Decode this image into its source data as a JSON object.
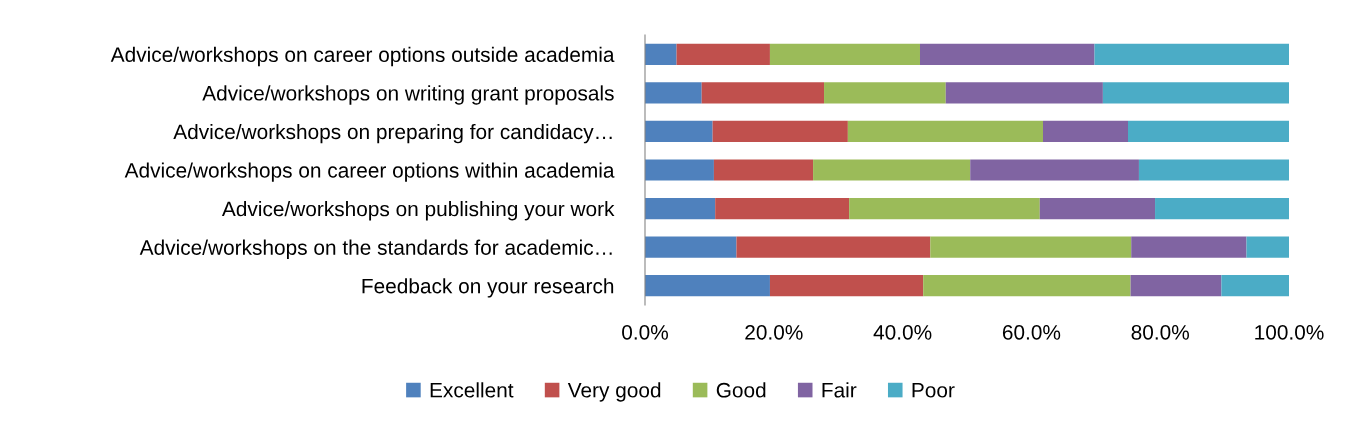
{
  "chart_data": {
    "type": "bar",
    "orientation": "horizontal",
    "stacked": true,
    "categories": [
      "Advice/workshops on career options outside academia",
      "Advice/workshops on writing grant proposals",
      "Advice/workshops on preparing for candidacy…",
      "Advice/workshops on career options within academia",
      "Advice/workshops on publishing your work",
      "Advice/workshops on the standards for academic…",
      "Feedback on your research"
    ],
    "series": [
      {
        "name": "Excellent",
        "color": "#4f81bd",
        "values": [
          4.9,
          8.8,
          10.5,
          10.7,
          10.9,
          14.2,
          19.4
        ]
      },
      {
        "name": "Very good",
        "color": "#c0504d",
        "values": [
          14.5,
          19.0,
          21.0,
          15.4,
          20.8,
          30.1,
          23.8
        ]
      },
      {
        "name": "Good",
        "color": "#9bbb59",
        "values": [
          23.3,
          18.9,
          30.3,
          24.4,
          29.6,
          31.2,
          32.2
        ]
      },
      {
        "name": "Fair",
        "color": "#8064a2",
        "values": [
          27.1,
          24.4,
          13.2,
          26.2,
          17.9,
          17.9,
          14.1
        ]
      },
      {
        "name": "Poor",
        "color": "#4bacc6",
        "values": [
          30.2,
          28.9,
          25.0,
          23.3,
          20.8,
          6.6,
          10.5
        ]
      }
    ],
    "xlim": [
      0,
      100
    ],
    "xticks": [
      {
        "value": 0,
        "label": "0.0%"
      },
      {
        "value": 20,
        "label": "20.0%"
      },
      {
        "value": 40,
        "label": "40.0%"
      },
      {
        "value": 60,
        "label": "60.0%"
      },
      {
        "value": 80,
        "label": "80.0%"
      },
      {
        "value": 100,
        "label": "100.0%"
      }
    ],
    "grid": false,
    "legend": "bottom"
  }
}
